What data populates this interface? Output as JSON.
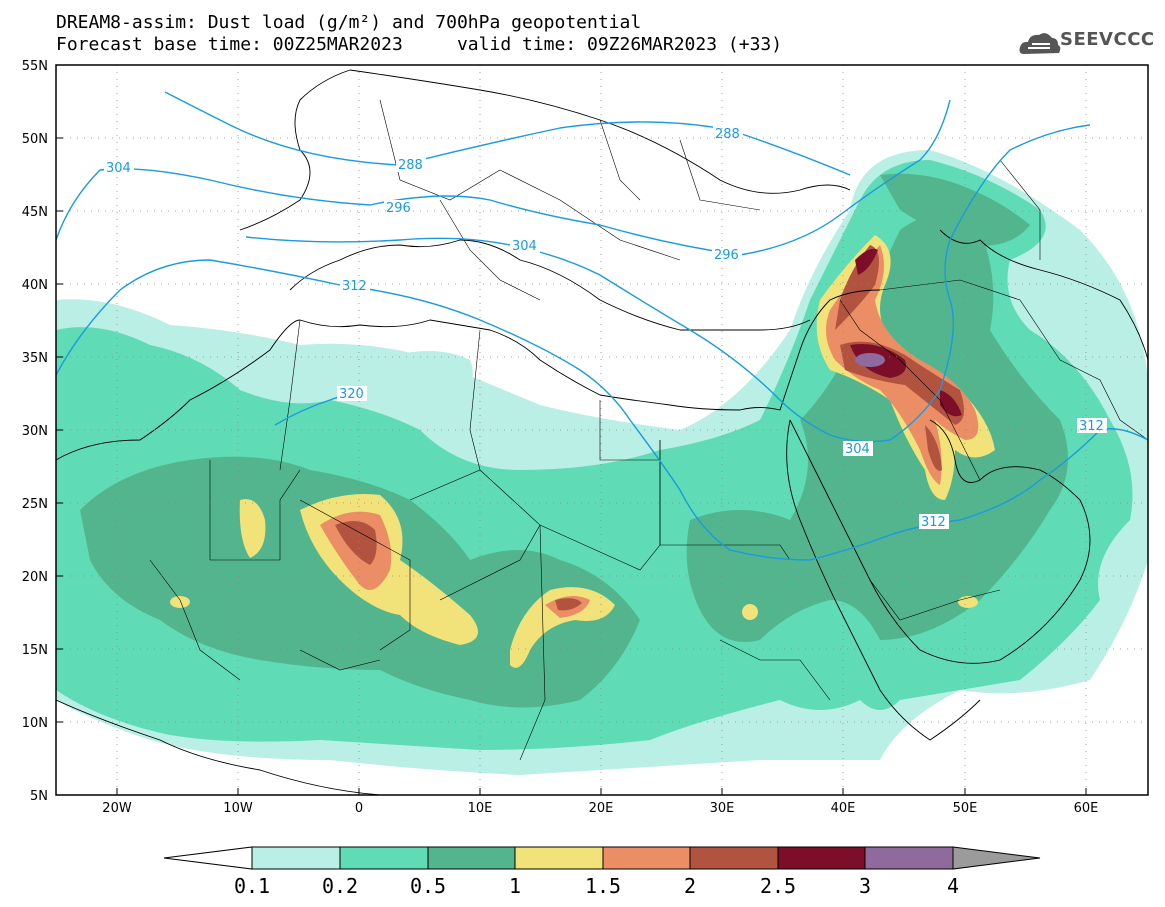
{
  "title": {
    "line1": "DREAM8-assim: Dust load (g/m²) and 700hPa geopotential",
    "line2": "Forecast base time: 00Z25MAR2023     valid time: 09Z26MAR2023 (+33)"
  },
  "logo": {
    "text": "SEEVCCC",
    "icon": "cloud-icon"
  },
  "axes": {
    "lon_ticks": [
      "20W",
      "10W",
      "0",
      "10E",
      "20E",
      "30E",
      "40E",
      "50E",
      "60E"
    ],
    "lat_ticks": [
      "55N",
      "50N",
      "45N",
      "40N",
      "35N",
      "30N",
      "25N",
      "20N",
      "15N",
      "10N",
      "5N"
    ]
  },
  "contour_labels": [
    "288",
    "288",
    "304",
    "296",
    "296",
    "304",
    "312",
    "320",
    "304",
    "312",
    "312"
  ],
  "colorbar": {
    "ticks": [
      "0.1",
      "0.2",
      "0.5",
      "1",
      "1.5",
      "2",
      "2.5",
      "3",
      "4"
    ],
    "colors": [
      "#ffffff",
      "#b9efe4",
      "#5fdcb5",
      "#53b58e",
      "#f2e27a",
      "#eb8e65",
      "#b2533f",
      "#7d0e2a",
      "#8e6b9c",
      "#9b9b9b"
    ]
  }
}
